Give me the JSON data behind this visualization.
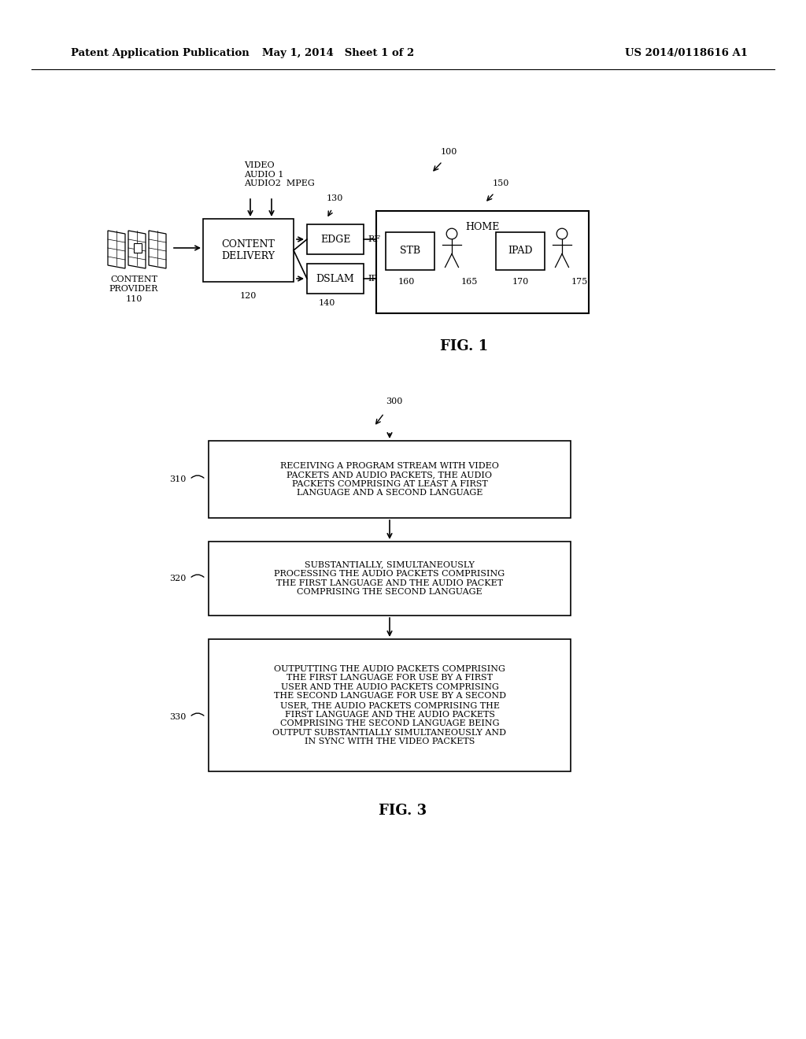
{
  "bg_color": "#ffffff",
  "header_left": "Patent Application Publication",
  "header_mid": "May 1, 2014   Sheet 1 of 2",
  "header_right": "US 2014/0118616 A1",
  "fig3": {
    "box310_text": "RECEIVING A PROGRAM STREAM WITH VIDEO\nPACKETS AND AUDIO PACKETS, THE AUDIO\nPACKETS COMPRISING AT LEAST A FIRST\nLANGUAGE AND A SECOND LANGUAGE",
    "box320_text": "SUBSTANTIALLY, SIMULTANEOUSLY\nPROCESSING THE AUDIO PACKETS COMPRISING\nTHE FIRST LANGUAGE AND THE AUDIO PACKET\nCOMPRISING THE SECOND LANGUAGE",
    "box330_text": "OUTPUTTING THE AUDIO PACKETS COMPRISING\nTHE FIRST LANGUAGE FOR USE BY A FIRST\nUSER AND THE AUDIO PACKETS COMPRISING\nTHE SECOND LANGUAGE FOR USE BY A SECOND\nUSER, THE AUDIO PACKETS COMPRISING THE\nFIRST LANGUAGE AND THE AUDIO PACKETS\nCOMPRISING THE SECOND LANGUAGE BEING\nOUTPUT SUBSTANTIALLY SIMULTANEOUSLY AND\nIN SYNC WITH THE VIDEO PACKETS"
  }
}
